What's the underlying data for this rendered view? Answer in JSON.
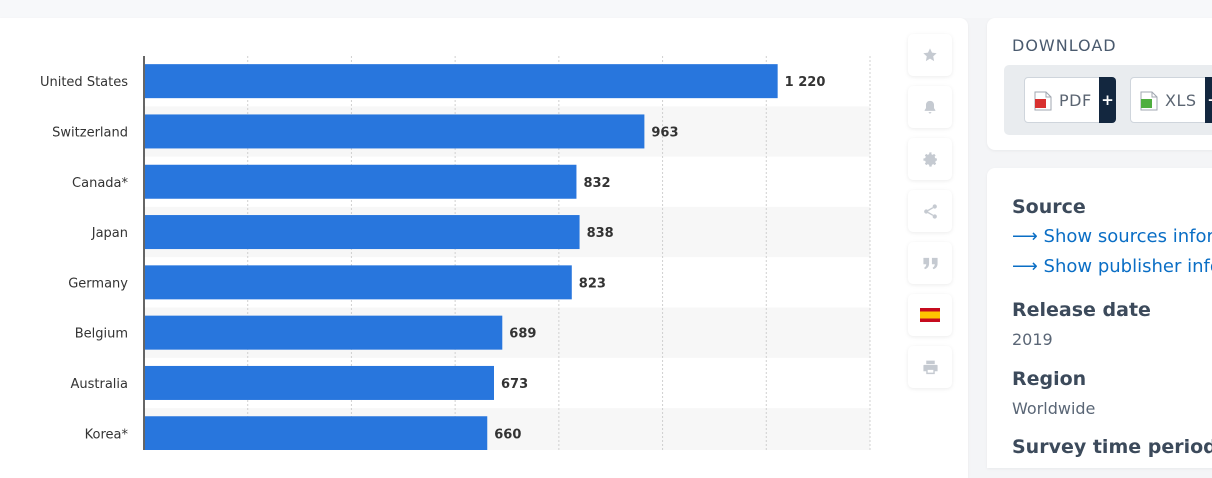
{
  "chart_data": {
    "type": "bar",
    "orientation": "horizontal",
    "categories": [
      "United States",
      "Switzerland",
      "Canada*",
      "Japan",
      "Germany",
      "Belgium",
      "Australia",
      "Korea*"
    ],
    "values": [
      1220,
      963,
      832,
      838,
      823,
      689,
      673,
      660
    ],
    "value_labels": [
      "1 220",
      "963",
      "832",
      "838",
      "823",
      "689",
      "673",
      "660"
    ],
    "xlim": [
      0,
      1400
    ],
    "grid": true,
    "bar_color": "#2876dd"
  },
  "toolbar": {
    "icons": [
      "star-icon",
      "bell-icon",
      "gear-icon",
      "share-icon",
      "quote-icon",
      "flag-icon",
      "print-icon"
    ]
  },
  "download": {
    "title": "DOWNLOAD",
    "pdf_label": "PDF",
    "xls_label": "XLS",
    "plus": "+"
  },
  "info": {
    "source_heading": "Source",
    "show_sources": "Show sources inform",
    "show_publisher": "Show publisher infor",
    "release_heading": "Release date",
    "release_value": "2019",
    "region_heading": "Region",
    "region_value": "Worldwide",
    "survey_heading": "Survey time period"
  }
}
